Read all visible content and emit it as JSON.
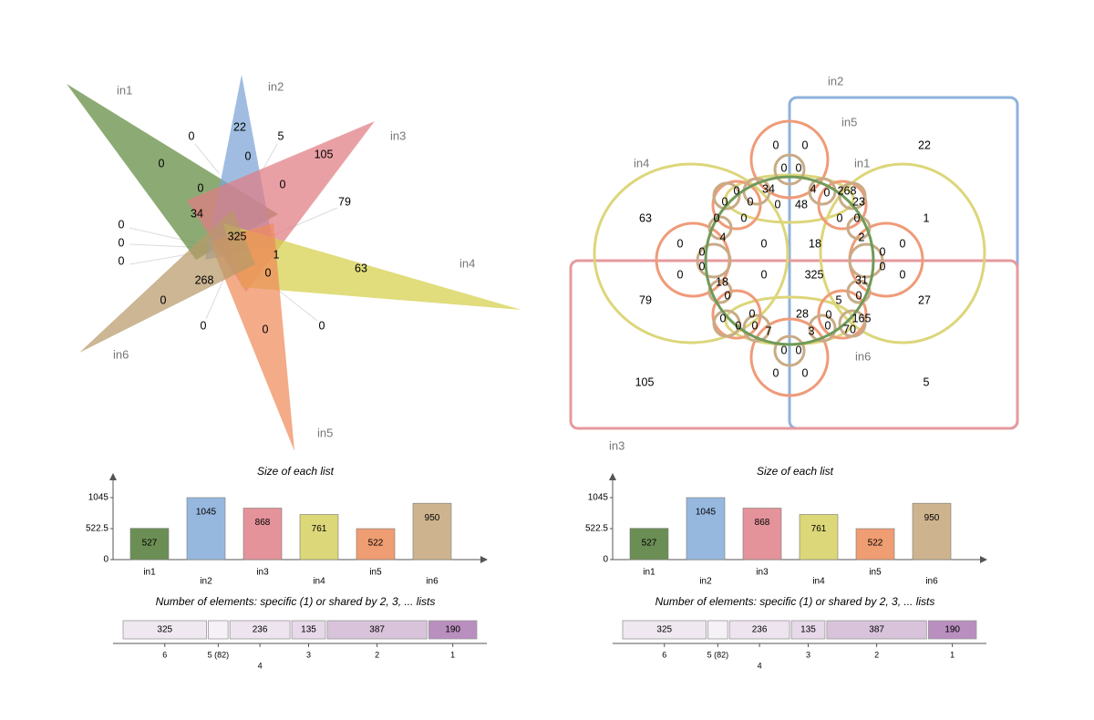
{
  "chart_data": [
    {
      "type": "venn",
      "shape": "triangles",
      "sets": [
        "in1",
        "in2",
        "in3",
        "in4",
        "in5",
        "in6"
      ],
      "colors": [
        "#5f8a3f",
        "#7ba3d6",
        "#e07b82",
        "#d6cf4a",
        "#ef8a5a",
        "#b99a6a"
      ],
      "regions": [
        0,
        22,
        5,
        105,
        0,
        0,
        0,
        0,
        79,
        34,
        0,
        0,
        0,
        325,
        1,
        63,
        0,
        268,
        0,
        0,
        0,
        0
      ]
    },
    {
      "type": "bar",
      "title": "Size of each list",
      "categories": [
        "in1",
        "in2",
        "in3",
        "in4",
        "in5",
        "in6"
      ],
      "values": [
        527,
        1045,
        868,
        761,
        522,
        950
      ],
      "colors": [
        "#6b8e55",
        "#97b8de",
        "#e4939a",
        "#dcd778",
        "#ef9d72",
        "#cdb48f"
      ],
      "ylim": [
        0,
        1045
      ],
      "yticks": [
        0,
        522.5,
        1045
      ]
    },
    {
      "type": "stacked-bar",
      "title": "Number of elements: specific (1) or shared by 2, 3, ... lists",
      "categories": [
        "6",
        "5 (82)",
        "4",
        "3",
        "2",
        "1"
      ],
      "values": [
        325,
        82,
        236,
        135,
        387,
        190
      ],
      "colors": [
        "#f0e8f1",
        "#f6f1f6",
        "#eee4ef",
        "#e7d9e9",
        "#d8c3db",
        "#b98fbf"
      ]
    },
    {
      "type": "venn",
      "shape": "ellipses",
      "sets": [
        "in1",
        "in2",
        "in3",
        "in4",
        "in5",
        "in6"
      ],
      "colors": [
        "#6f9a58",
        "#8fb2dc",
        "#e59a9e",
        "#dcd67a",
        "#ef9b79",
        "#c8ab86"
      ],
      "regions": [
        0,
        0,
        22,
        0,
        0,
        34,
        4,
        268,
        0,
        0,
        0,
        0,
        23,
        0,
        48,
        0,
        0,
        0,
        0,
        63,
        1,
        4,
        2,
        0,
        0,
        18,
        0,
        0,
        0,
        0,
        0,
        325,
        0,
        0,
        0,
        18,
        31,
        0,
        0,
        79,
        27,
        0,
        28,
        5,
        0,
        0,
        0,
        7,
        3,
        0,
        165,
        0,
        70,
        0,
        0,
        0,
        0,
        105,
        5
      ]
    },
    {
      "type": "bar",
      "title": "Size of each list",
      "categories": [
        "in1",
        "in2",
        "in3",
        "in4",
        "in5",
        "in6"
      ],
      "values": [
        527,
        1045,
        868,
        761,
        522,
        950
      ],
      "colors": [
        "#6b8e55",
        "#97b8de",
        "#e4939a",
        "#dcd778",
        "#ef9d72",
        "#cdb48f"
      ],
      "ylim": [
        0,
        1045
      ],
      "yticks": [
        0,
        522.5,
        1045
      ]
    },
    {
      "type": "stacked-bar",
      "title": "Number of elements: specific (1) or shared by 2, 3, ... lists",
      "categories": [
        "6",
        "5 (82)",
        "4",
        "3",
        "2",
        "1"
      ],
      "values": [
        325,
        82,
        236,
        135,
        387,
        190
      ],
      "colors": [
        "#f0e8f1",
        "#f6f1f6",
        "#eee4ef",
        "#e7d9e9",
        "#d8c3db",
        "#b98fbf"
      ]
    }
  ]
}
